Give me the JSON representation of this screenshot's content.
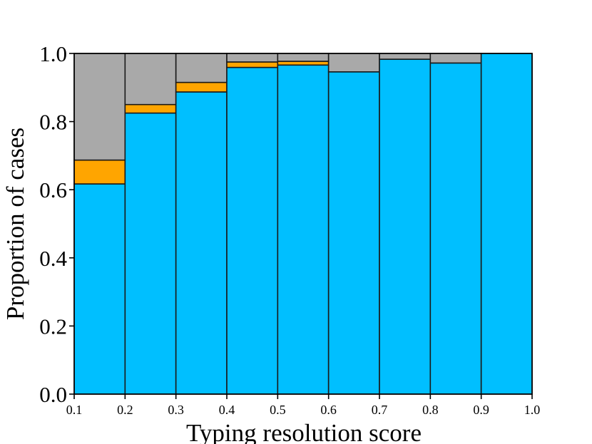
{
  "chart_data": {
    "type": "bar",
    "stacked": true,
    "histogram": true,
    "xlabel": "Typing resolution score",
    "ylabel": "Proportion of cases",
    "xlim": [
      0.1,
      1.0
    ],
    "ylim": [
      0.0,
      1.0
    ],
    "x_ticks": [
      "0.1",
      "0.2",
      "0.3",
      "0.4",
      "0.5",
      "0.6",
      "0.7",
      "0.8",
      "0.9",
      "1.0"
    ],
    "y_ticks": [
      "0.0",
      "0.2",
      "0.4",
      "0.6",
      "0.8",
      "1.0"
    ],
    "bins": [
      {
        "start": 0.1,
        "end": 0.2
      },
      {
        "start": 0.2,
        "end": 0.3
      },
      {
        "start": 0.3,
        "end": 0.4
      },
      {
        "start": 0.4,
        "end": 0.5
      },
      {
        "start": 0.5,
        "end": 0.6
      },
      {
        "start": 0.6,
        "end": 0.7
      },
      {
        "start": 0.7,
        "end": 0.8
      },
      {
        "start": 0.8,
        "end": 0.9
      },
      {
        "start": 0.9,
        "end": 1.0
      }
    ],
    "series": [
      {
        "color": "#00bfff",
        "values": [
          0.617,
          0.825,
          0.887,
          0.959,
          0.966,
          0.946,
          0.983,
          0.972,
          1.0
        ]
      },
      {
        "color": "#ffa500",
        "values": [
          0.07,
          0.025,
          0.028,
          0.016,
          0.011,
          0.0,
          0.0,
          0.0,
          0.0
        ]
      },
      {
        "color": "#a9a9a9",
        "values": [
          0.313,
          0.15,
          0.085,
          0.025,
          0.023,
          0.054,
          0.017,
          0.028,
          0.0
        ]
      }
    ],
    "grid": false,
    "legend": false
  }
}
